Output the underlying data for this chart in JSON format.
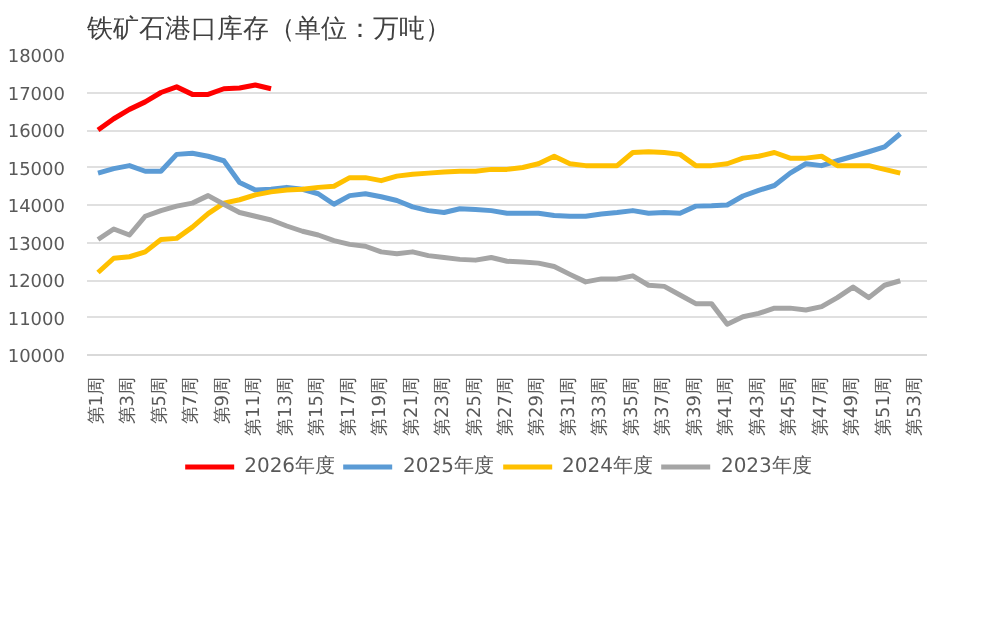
{
  "chart_data": {
    "type": "line",
    "title": "铁矿石港口库存（单位：万吨）",
    "categories": [
      "第1周",
      null,
      "第3周",
      null,
      "第5周",
      null,
      "第7周",
      null,
      "第9周",
      null,
      "第11周",
      null,
      "第13周",
      null,
      "第15周",
      null,
      "第17周",
      null,
      "第19周",
      null,
      "第21周",
      null,
      "第23周",
      null,
      "第25周",
      null,
      "第27周",
      null,
      "第29周",
      null,
      "第31周",
      null,
      "第33周",
      null,
      "第35周",
      null,
      "第37周",
      null,
      "第39周",
      null,
      "第41周",
      null,
      "第43周",
      null,
      "第45周",
      null,
      "第47周",
      null,
      "第49周",
      null,
      "第51周",
      null,
      "第53周"
    ],
    "series": [
      {
        "name": "2026年度",
        "color": "#ff0000",
        "values": [
          16000,
          16300,
          16550,
          16750,
          17000,
          17150,
          16950,
          16950,
          17100,
          17120,
          17200,
          17100,
          null,
          null,
          null,
          null,
          null,
          null,
          null,
          null,
          null,
          null,
          null,
          null,
          null,
          null,
          null,
          null,
          null,
          null,
          null,
          null,
          null,
          null,
          null,
          null,
          null,
          null,
          null,
          null,
          null,
          null,
          null,
          null,
          null,
          null,
          null,
          null,
          null,
          null,
          null,
          null,
          null
        ]
      },
      {
        "name": "2025年度",
        "color": "#5b9bd5",
        "values": [
          14850,
          14970,
          15050,
          14900,
          14900,
          15350,
          15380,
          15300,
          15180,
          14600,
          14400,
          14420,
          14470,
          14420,
          14300,
          14020,
          14250,
          14300,
          14220,
          14120,
          13950,
          13850,
          13800,
          13900,
          13880,
          13850,
          13780,
          13780,
          13780,
          13720,
          13700,
          13700,
          13760,
          13800,
          13850,
          13780,
          13800,
          13780,
          13970,
          13980,
          14000,
          14240,
          14390,
          14520,
          14850,
          15100,
          15050,
          15180,
          15300,
          15420,
          15550,
          15900,
          null
        ]
      },
      {
        "name": "2024年度",
        "color": "#ffc000",
        "values": [
          12200,
          12580,
          12620,
          12750,
          13080,
          13110,
          13410,
          13770,
          14050,
          14140,
          14270,
          14350,
          14400,
          14420,
          14470,
          14500,
          14730,
          14730,
          14650,
          14770,
          14820,
          14850,
          14880,
          14900,
          14900,
          14950,
          14950,
          15000,
          15100,
          15300,
          15100,
          15050,
          15050,
          15050,
          15400,
          15420,
          15400,
          15350,
          15050,
          15050,
          15100,
          15250,
          15300,
          15400,
          15250,
          15250,
          15300,
          15050,
          15050,
          15050,
          14950,
          14850,
          null
        ]
      },
      {
        "name": "2023年度",
        "color": "#a5a5a5",
        "values": [
          13080,
          13360,
          13200,
          13700,
          13850,
          13970,
          14050,
          14250,
          14020,
          13800,
          13700,
          13600,
          13440,
          13300,
          13200,
          13050,
          12950,
          12900,
          12750,
          12700,
          12750,
          12650,
          12600,
          12550,
          12530,
          12600,
          12500,
          12480,
          12450,
          12360,
          12150,
          11950,
          12030,
          12030,
          12110,
          11860,
          11830,
          11600,
          11370,
          11370,
          10820,
          11020,
          11110,
          11250,
          11250,
          11200,
          11290,
          11530,
          11810,
          11530,
          11860,
          11980,
          null
        ]
      }
    ],
    "ylim": [
      10000,
      18000
    ],
    "yticks": [
      10000,
      11000,
      12000,
      13000,
      14000,
      15000,
      16000,
      17000,
      18000
    ],
    "grid": "y",
    "legend": "bottom",
    "marker": "none",
    "line_style": "solid"
  }
}
